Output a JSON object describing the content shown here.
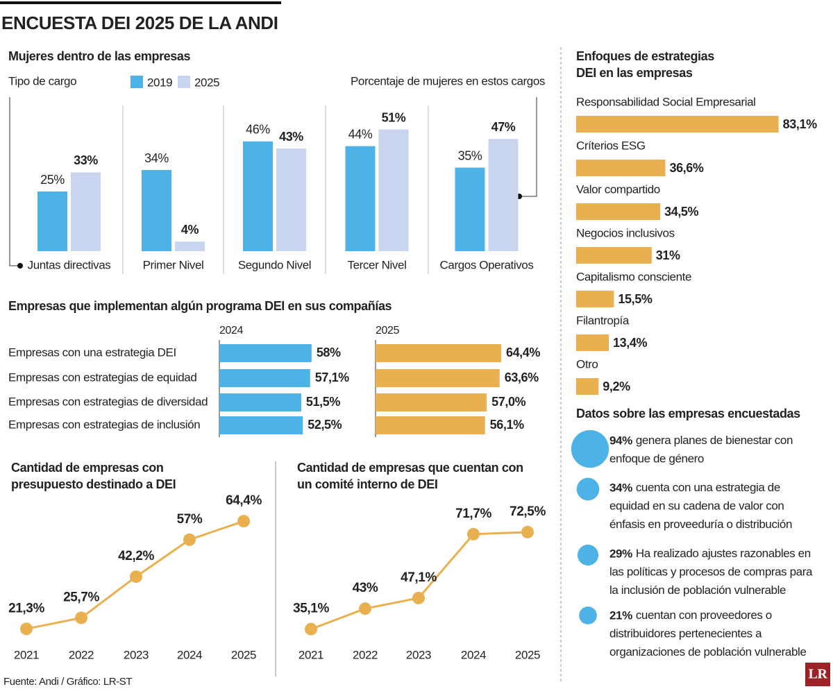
{
  "title": "ENCUESTA DEI 2025 DE LA ANDI",
  "source": "Fuente: Andi / Gráfico: LR-ST",
  "logo": "LR",
  "chart_data": [
    {
      "type": "bar",
      "title": "Mujeres dentro de las empresas",
      "x_label": "Tipo de cargo",
      "annotation": "Porcentaje de mujeres en estos cargos",
      "categories": [
        "Juntas directivas",
        "Primer Nivel",
        "Segundo Nivel",
        "Tercer Nivel",
        "Cargos Operativos"
      ],
      "series": [
        {
          "name": "2019",
          "color": "#4db3e6",
          "values": [
            25,
            34,
            46,
            44,
            35
          ],
          "value_labels": [
            "25%",
            "34%",
            "46%",
            "44%",
            "35%"
          ]
        },
        {
          "name": "2025",
          "color": "#c9d5ee",
          "values": [
            33,
            4,
            43,
            51,
            47
          ],
          "value_labels": [
            "33%",
            "4%",
            "43%",
            "51%",
            "47%"
          ]
        }
      ]
    },
    {
      "type": "barh",
      "title": "Empresas que implementan algún programa DEI en sus compañías",
      "categories": [
        "Empresas con una estrategia DEI",
        "Empresas con estrategias de equidad",
        "Empresas con estrategias de diversidad",
        "Empresas con estrategias de inclusión"
      ],
      "series": [
        {
          "name": "2024",
          "color": "#4db3e6",
          "values": [
            58,
            57.1,
            51.5,
            52.5
          ],
          "value_labels": [
            "58%",
            "57,1%",
            "51,5%",
            "52,5%"
          ]
        },
        {
          "name": "2025",
          "color": "#e8b04e",
          "values": [
            64.4,
            63.6,
            57.0,
            56.1
          ],
          "value_labels": [
            "64,4%",
            "63,6%",
            "57,0%",
            "56,1%"
          ]
        }
      ]
    },
    {
      "type": "line",
      "title": "Cantidad de empresas con presupuesto destinado a DEI",
      "categories": [
        "2021",
        "2022",
        "2023",
        "2024",
        "2025"
      ],
      "color": "#e8b04e",
      "values": [
        21.3,
        25.7,
        42.2,
        57,
        64.4
      ],
      "value_labels": [
        "21,3%",
        "25,7%",
        "42,2%",
        "57%",
        "64,4%"
      ]
    },
    {
      "type": "line",
      "title": "Cantidad de empresas que cuentan con un comité interno de DEI",
      "categories": [
        "2021",
        "2022",
        "2023",
        "2024",
        "2025"
      ],
      "color": "#e8b04e",
      "values": [
        35.1,
        43,
        47.1,
        71.7,
        72.5
      ],
      "value_labels": [
        "35,1%",
        "43%",
        "47,1%",
        "71,7%",
        "72,5%"
      ]
    },
    {
      "type": "barh",
      "title": "Enfoques de estrategias DEI en las empresas",
      "categories": [
        "Responsabilidad Social Empresarial",
        "Críterios ESG",
        "Valor compartido",
        "Negocios inclusivos",
        "Capitalismo consciente",
        "Filantropía",
        "Otro"
      ],
      "color": "#e8b04e",
      "values": [
        83.1,
        36.6,
        34.5,
        31,
        15.5,
        13.4,
        9.2
      ],
      "value_labels": [
        "83,1%",
        "36,6%",
        "34,5%",
        "31%",
        "15,5%",
        "13,4%",
        "9,2%"
      ]
    },
    {
      "type": "bubble",
      "title": "Datos sobre las empresas encuestadas",
      "color": "#4db3e6",
      "values": [
        94,
        34,
        29,
        21
      ],
      "value_labels": [
        "94%",
        "34%",
        "29%",
        "21%"
      ],
      "texts": [
        "genera planes de bienestar con enfoque de género",
        "cuenta con una estrategia de equidad en su cadena de valor con énfasis en proveeduría o distribución",
        "Ha realizado ajustes razonables en las políticas y procesos de compras para la inclusión de población vulnerable",
        "cuentan con proveedores o distribuidores pertenecientes a organizaciones de población vulnerable"
      ]
    }
  ]
}
